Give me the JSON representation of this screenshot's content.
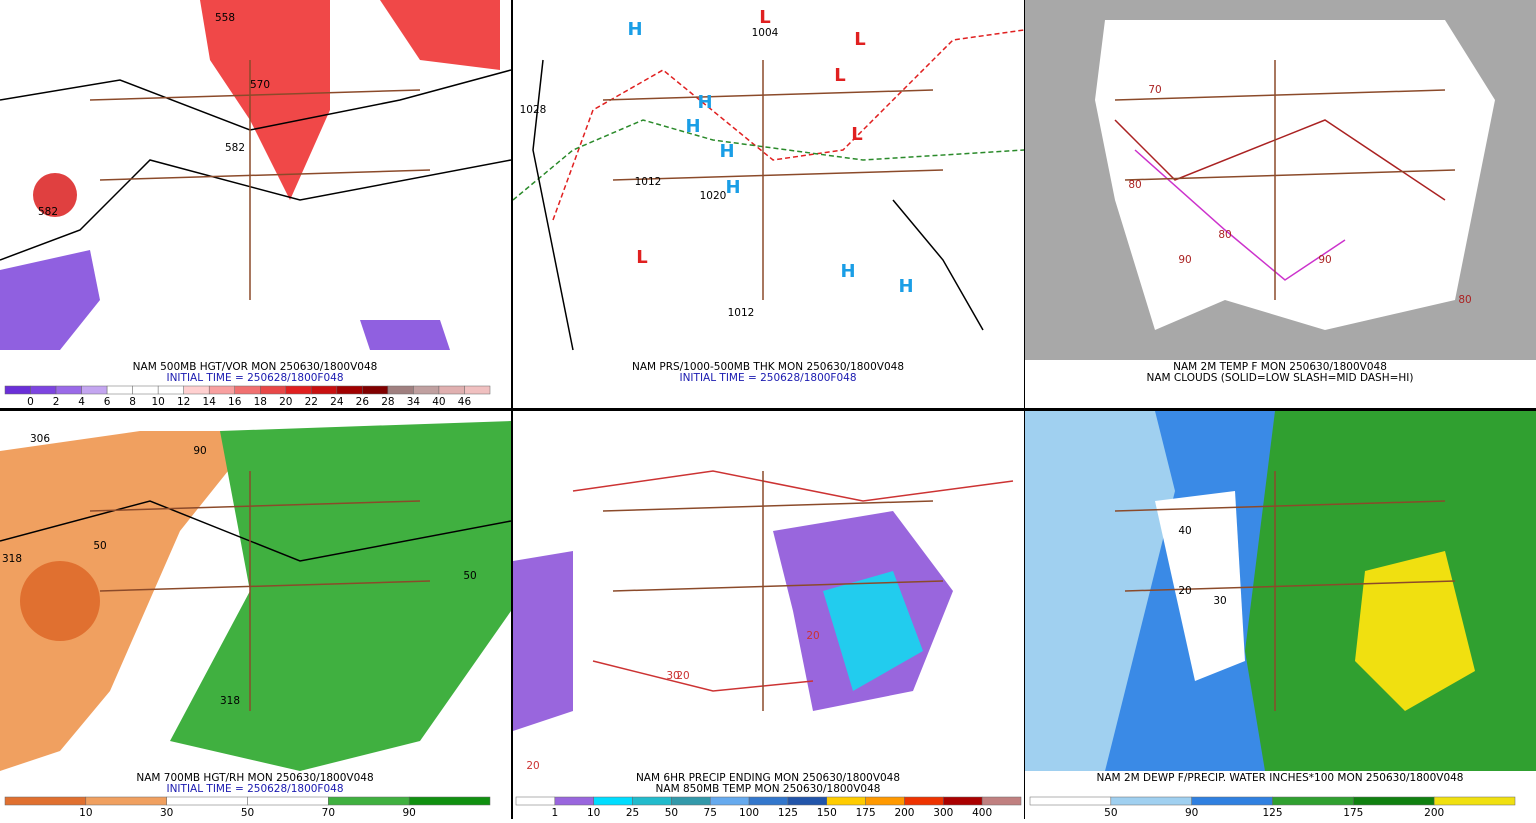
{
  "panels": [
    {
      "captions": [
        "NAM 500MB HGT/VOR MON 250630/1800V048",
        "INITIAL TIME = 250628/1800F048"
      ],
      "colorbar": {
        "labels": [
          0,
          2,
          4,
          6,
          8,
          10,
          12,
          14,
          16,
          18,
          20,
          22,
          24,
          26,
          28,
          34,
          40,
          46
        ],
        "colors": [
          "#6a2fd8",
          "#7d45e0",
          "#9a6ae8",
          "#c4a6f0",
          "#ffffff",
          "#ffffff",
          "#ffffff",
          "#ffd0d0",
          "#f8a0a0",
          "#f07070",
          "#e84848",
          "#e02020",
          "#c81010",
          "#a00000",
          "#800000",
          "#a08080",
          "#c0a0a0",
          "#e0b0b0",
          "#f0c0c0"
        ]
      },
      "map_labels": [
        "558",
        "570",
        "582",
        "582"
      ]
    },
    {
      "captions": [
        "NAM PRS/1000-500MB THK MON 250630/1800V048",
        "INITIAL TIME = 250628/1800F048"
      ],
      "map_labels": [
        "H",
        "H",
        "H",
        "H",
        "H",
        "H",
        "H",
        "L",
        "L",
        "L",
        "L",
        "L",
        "1028",
        "1012",
        "1020",
        "1004",
        "1012"
      ]
    },
    {
      "captions": [
        "NAM 2M TEMP F MON 250630/1800V048",
        "NAM CLOUDS (SOLID=LOW SLASH=MID DASH=HI)"
      ],
      "map_labels": [
        "70",
        "80",
        "90",
        "80",
        "90",
        "80"
      ]
    },
    {
      "captions": [
        "NAM 700MB HGT/RH MON 250630/1800V048",
        "INITIAL TIME = 250628/1800F048"
      ],
      "colorbar": {
        "labels": [
          10,
          30,
          50,
          70,
          90
        ],
        "colors": [
          "#e07030",
          "#f0a060",
          "#ffffff",
          "#ffffff",
          "#40b040",
          "#109010"
        ]
      },
      "map_labels": [
        "306",
        "318",
        "50",
        "90",
        "50",
        "318"
      ]
    },
    {
      "captions": [
        "NAM 6HR PRECIP ENDING MON 250630/1800V048",
        "NAM 850MB TEMP MON 250630/1800V048"
      ],
      "colorbar": {
        "labels": [
          1,
          10,
          25,
          50,
          75,
          100,
          125,
          150,
          175,
          200,
          300,
          400
        ],
        "colors": [
          "#ffffff",
          "#9966dd",
          "#00ddff",
          "#22bbcc",
          "#3399aa",
          "#66aaee",
          "#3377cc",
          "#2255aa",
          "#ffcc00",
          "#ff9900",
          "#ee3300",
          "#aa0000",
          "#c08080"
        ]
      },
      "map_labels": [
        "20",
        "20",
        "20",
        "30"
      ]
    },
    {
      "captions": [
        "NAM 2M DEWP F/PRECIP. WATER INCHES*100 MON 250630/1800V048"
      ],
      "colorbar": {
        "labels": [
          50,
          90,
          125,
          175,
          200
        ],
        "colors": [
          "#ffffff",
          "#a0d0f0",
          "#3080e0",
          "#30a030",
          "#108010",
          "#f0e010"
        ]
      },
      "map_labels": [
        "20",
        "30",
        "40"
      ]
    }
  ]
}
